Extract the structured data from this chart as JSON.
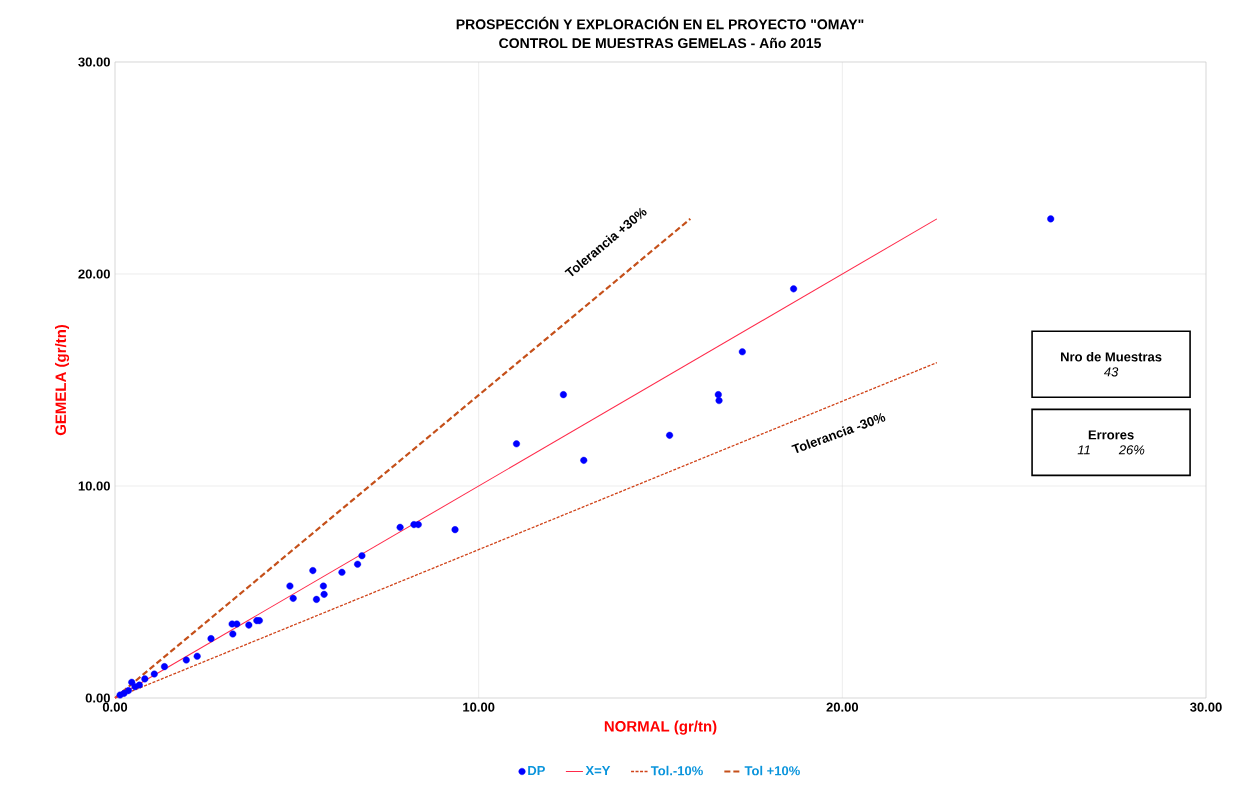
{
  "chart_data": {
    "type": "scatter",
    "title": "PROSPECCIÓN Y EXPLORACIÓN EN EL PROYECTO \"OMAY\"",
    "subtitle": "CONTROL DE MUESTRAS GEMELAS - Año 2015",
    "xlabel": "NORMAL (gr/tn)",
    "ylabel": "GEMELA (gr/tn)",
    "xlim": [
      0,
      30
    ],
    "ylim": [
      0,
      30
    ],
    "xticks": [
      {
        "value": 0,
        "label": "0.00"
      },
      {
        "value": 10,
        "label": "10.00"
      },
      {
        "value": 20,
        "label": "20.00"
      },
      {
        "value": 30,
        "label": "30.00"
      }
    ],
    "yticks": [
      {
        "value": 0,
        "label": "0.00"
      },
      {
        "value": 10,
        "label": "10.00"
      },
      {
        "value": 20,
        "label": "20.00"
      },
      {
        "value": 30,
        "label": "30.00"
      }
    ],
    "grid": true,
    "legend": "bottom",
    "series": [
      {
        "name": "DP",
        "marker": "circle",
        "color": "#0000ff",
        "x": [
          0.14,
          0.25,
          0.37,
          0.46,
          0.55,
          0.67,
          0.82,
          1.08,
          1.36,
          1.96,
          2.26,
          2.64,
          3.24,
          3.22,
          3.35,
          3.68,
          3.9,
          3.97,
          4.81,
          4.9,
          5.44,
          5.54,
          5.73,
          5.75,
          6.24,
          6.67,
          6.79,
          7.84,
          8.22,
          8.34,
          9.35,
          11.04,
          12.33,
          12.89,
          15.25,
          16.59,
          16.61,
          17.25,
          18.66,
          25.73
        ],
        "values": [
          0.14,
          0.22,
          0.35,
          0.74,
          0.53,
          0.61,
          0.9,
          1.13,
          1.48,
          1.79,
          1.97,
          2.8,
          3.02,
          3.49,
          3.49,
          3.44,
          3.65,
          3.65,
          5.28,
          4.7,
          6.01,
          4.65,
          5.28,
          4.89,
          5.93,
          6.31,
          6.71,
          8.05,
          8.18,
          8.18,
          7.94,
          11.99,
          14.31,
          11.21,
          12.39,
          14.31,
          14.03,
          16.33,
          19.3,
          22.6
        ]
      },
      {
        "name": "X=Y",
        "type": "line",
        "marker": "none",
        "color": "#ff2a4a",
        "line_style": "solid",
        "x": [
          0,
          22.6
        ],
        "values": [
          0,
          22.6
        ]
      },
      {
        "name": "Tol.-10%",
        "type": "line",
        "marker": "none",
        "color": "#d0441a",
        "line_style": "dotted",
        "x": [
          0,
          22.6
        ],
        "values": [
          0,
          15.82
        ]
      },
      {
        "name": "Tol +10%",
        "type": "line",
        "marker": "none",
        "color": "#c5501a",
        "line_style": "dashed",
        "x": [
          0,
          15.82
        ],
        "values": [
          0,
          22.6
        ]
      }
    ],
    "annotations": [
      "Tolerancia  +30%",
      "Tolerancia -30%",
      "Nro de Muestras",
      "43",
      "Errores",
      "11",
      "26%"
    ]
  }
}
